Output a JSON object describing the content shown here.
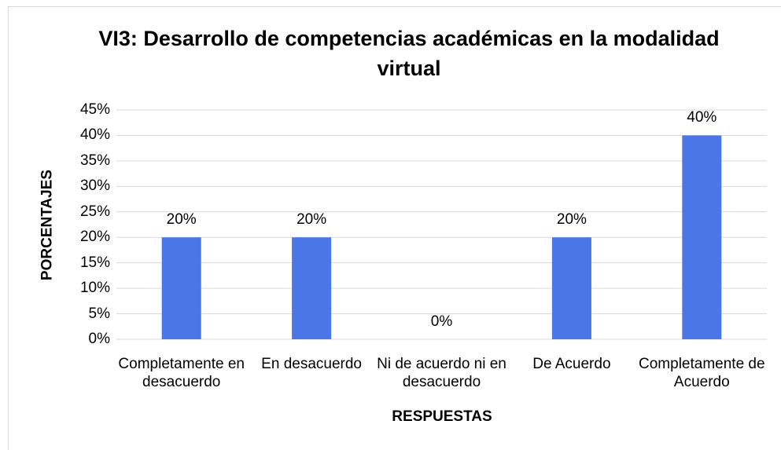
{
  "chart_data": {
    "type": "bar",
    "title": "VI3: Desarrollo de competencias académicas en la modalidad virtual",
    "x_label": "RESPUESTAS",
    "y_label": "PORCENTAJES",
    "categories": [
      "Completamente en desacuerdo",
      "En desacuerdo",
      "Ni de acuerdo ni en desacuerdo",
      "De Acuerdo",
      "Completamente de Acuerdo"
    ],
    "values": [
      20,
      20,
      0,
      20,
      40
    ],
    "value_labels": [
      "20%",
      "20%",
      "0%",
      "20%",
      "40%"
    ],
    "color": "#4a76e8",
    "ylim": [
      0,
      45
    ],
    "yticks": [
      {
        "value": 0,
        "label": "0%"
      },
      {
        "value": 5,
        "label": "5%"
      },
      {
        "value": 10,
        "label": "10%"
      },
      {
        "value": 15,
        "label": "15%"
      },
      {
        "value": 20,
        "label": "20%"
      },
      {
        "value": 25,
        "label": "25%"
      },
      {
        "value": 30,
        "label": "30%"
      },
      {
        "value": 35,
        "label": "35%"
      },
      {
        "value": 40,
        "label": "40%"
      },
      {
        "value": 45,
        "label": "45%"
      }
    ],
    "grid": true
  }
}
